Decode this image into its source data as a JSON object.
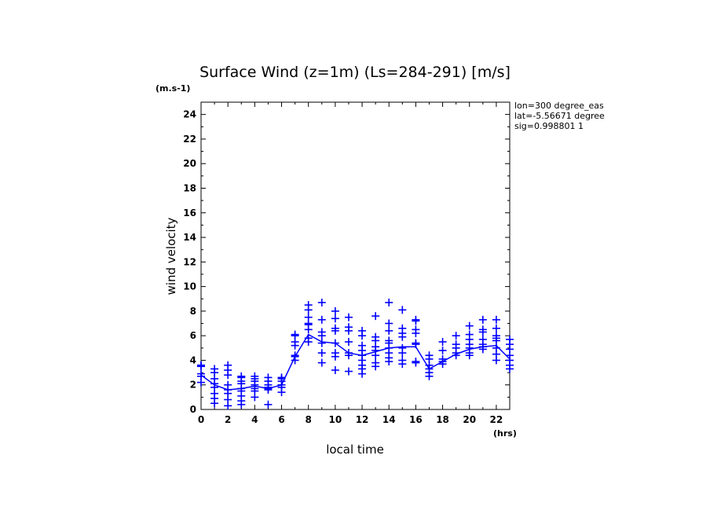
{
  "chart_data": {
    "type": "scatter",
    "title": "Surface Wind (z=1m) (Ls=284-291) [m/s]",
    "ylabel": "wind velocity",
    "yunit": "(m.s-1)",
    "xlabel": "local time",
    "xunit": "(hrs)",
    "xlim": [
      0,
      23
    ],
    "ylim": [
      0,
      25
    ],
    "xticks": [
      "0",
      "2",
      "4",
      "6",
      "8",
      "10",
      "12",
      "14",
      "16",
      "18",
      "20",
      "22"
    ],
    "yticks": [
      "0",
      "2",
      "4",
      "6",
      "8",
      "10",
      "12",
      "14",
      "16",
      "18",
      "20",
      "22",
      "24"
    ],
    "annotations": [
      "lon=300 degree_eas",
      "lat=-5.56671 degree",
      "sig=0.998801 1"
    ],
    "color": "#0000ff",
    "mean_line": {
      "x": [
        0,
        1,
        2,
        3,
        4,
        5,
        6,
        7,
        8,
        9,
        10,
        11,
        12,
        13,
        14,
        15,
        16,
        17,
        18,
        19,
        20,
        21,
        22,
        23
      ],
      "y": [
        2.8,
        2.0,
        1.6,
        1.7,
        1.9,
        1.7,
        2.0,
        4.3,
        6.1,
        5.5,
        5.4,
        4.6,
        4.4,
        4.7,
        5.0,
        5.1,
        5.1,
        3.3,
        3.9,
        4.5,
        4.9,
        5.1,
        5.2,
        4.1
      ]
    },
    "points": [
      {
        "x": 0,
        "y": [
          3.6,
          3.6,
          3.5,
          2.9,
          2.7,
          2.2
        ]
      },
      {
        "x": 1,
        "y": [
          3.3,
          3.0,
          2.5,
          2.1,
          1.8,
          1.3,
          0.9,
          0.5
        ]
      },
      {
        "x": 2,
        "y": [
          3.6,
          3.2,
          2.8,
          2.0,
          1.6,
          1.3,
          0.8,
          0.3
        ]
      },
      {
        "x": 3,
        "y": [
          2.7,
          2.6,
          2.3,
          2.1,
          1.7,
          1.5,
          1.1,
          0.7,
          0.4
        ]
      },
      {
        "x": 4,
        "y": [
          2.7,
          2.5,
          2.3,
          2.0,
          1.7,
          1.5,
          1.0
        ]
      },
      {
        "x": 5,
        "y": [
          2.6,
          2.3,
          2.0,
          1.8,
          1.7,
          1.6,
          0.4
        ]
      },
      {
        "x": 6,
        "y": [
          2.6,
          2.5,
          2.3,
          2.0,
          1.8,
          1.4
        ]
      },
      {
        "x": 7,
        "y": [
          6.1,
          6.0,
          5.5,
          5.2,
          4.4,
          4.3,
          4.0
        ]
      },
      {
        "x": 8,
        "y": [
          8.5,
          8.1,
          7.5,
          7.0,
          6.9,
          6.5,
          5.8,
          5.5
        ]
      },
      {
        "x": 9,
        "y": [
          8.7,
          7.3,
          6.3,
          6.0,
          5.4,
          4.6,
          3.8
        ]
      },
      {
        "x": 10,
        "y": [
          8.0,
          7.4,
          6.6,
          6.4,
          5.4,
          4.6,
          4.3,
          3.2
        ]
      },
      {
        "x": 11,
        "y": [
          7.5,
          6.7,
          6.4,
          5.5,
          4.6,
          4.4,
          3.1
        ]
      },
      {
        "x": 12,
        "y": [
          6.4,
          6.0,
          5.2,
          4.8,
          4.4,
          4.0,
          3.6,
          3.3,
          2.9
        ]
      },
      {
        "x": 13,
        "y": [
          7.6,
          5.9,
          5.6,
          5.1,
          4.8,
          4.4,
          3.8,
          3.5
        ]
      },
      {
        "x": 14,
        "y": [
          8.7,
          7.0,
          6.4,
          5.6,
          5.4,
          5.0,
          4.6,
          4.2,
          3.9
        ]
      },
      {
        "x": 15,
        "y": [
          8.1,
          6.6,
          6.2,
          5.9,
          5.0,
          4.6,
          4.0,
          3.7
        ]
      },
      {
        "x": 16,
        "y": [
          7.3,
          7.2,
          6.5,
          6.2,
          5.4,
          5.3,
          3.9,
          3.8
        ]
      },
      {
        "x": 17,
        "y": [
          4.4,
          4.1,
          3.6,
          3.3,
          3.0,
          2.7
        ]
      },
      {
        "x": 18,
        "y": [
          5.5,
          4.8,
          4.1,
          3.9,
          3.7
        ]
      },
      {
        "x": 19,
        "y": [
          6.0,
          5.3,
          5.0,
          4.6,
          4.4
        ]
      },
      {
        "x": 20,
        "y": [
          6.8,
          6.1,
          5.7,
          5.3,
          5.0,
          4.6,
          4.4
        ]
      },
      {
        "x": 21,
        "y": [
          7.3,
          6.5,
          6.3,
          5.7,
          5.3,
          5.1,
          4.9
        ]
      },
      {
        "x": 22,
        "y": [
          7.3,
          6.6,
          6.0,
          5.8,
          5.6,
          5.0,
          4.5,
          4.0
        ]
      },
      {
        "x": 23,
        "y": [
          5.7,
          5.3,
          4.9,
          4.4,
          4.0,
          3.6,
          3.3
        ]
      }
    ]
  }
}
